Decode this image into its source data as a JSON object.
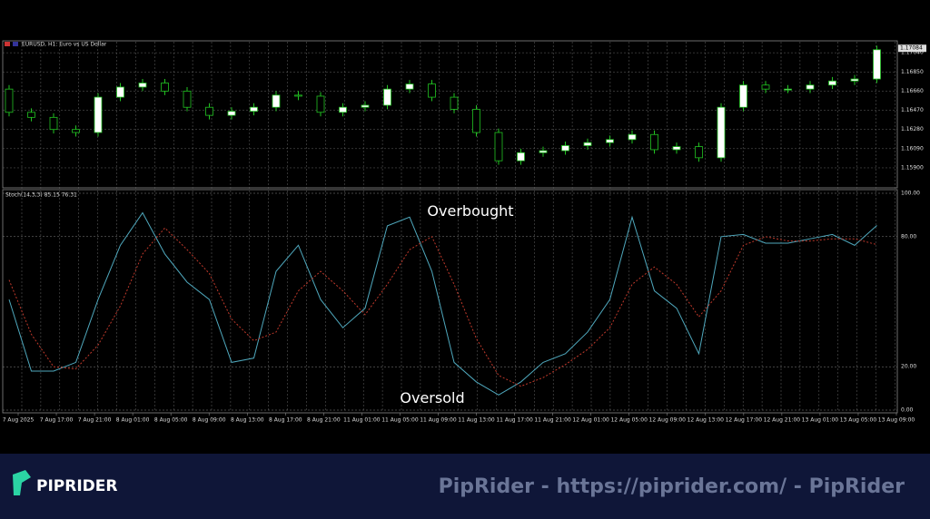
{
  "chart_data": [
    {
      "type": "candlestick",
      "title": "EURUSD, H1: Euro vs US Dollar",
      "open": [
        1.1668,
        1.1645,
        1.164,
        1.1628,
        1.1625,
        1.166,
        1.167,
        1.1674,
        1.1666,
        1.165,
        1.1642,
        1.1646,
        1.165,
        1.1662,
        1.1661,
        1.1645,
        1.165,
        1.1652,
        1.1668,
        1.1673,
        1.166,
        1.1648,
        1.1625,
        1.1597,
        1.1605,
        1.1607,
        1.1612,
        1.1615,
        1.1618,
        1.1623,
        1.1608,
        1.1611,
        1.16,
        1.165,
        1.1672,
        1.1668,
        1.1668,
        1.1672,
        1.1676,
        1.1678
      ],
      "high": [
        1.1672,
        1.1649,
        1.1644,
        1.1632,
        1.1664,
        1.1674,
        1.1678,
        1.1678,
        1.167,
        1.1654,
        1.165,
        1.1654,
        1.1666,
        1.1666,
        1.1665,
        1.1654,
        1.1656,
        1.1672,
        1.1677,
        1.1677,
        1.1664,
        1.1652,
        1.1629,
        1.1609,
        1.1611,
        1.1616,
        1.1619,
        1.1622,
        1.1627,
        1.1627,
        1.1615,
        1.1615,
        1.1654,
        1.1676,
        1.1676,
        1.1672,
        1.1676,
        1.168,
        1.1682,
        1.1711
      ],
      "low": [
        1.1641,
        1.1636,
        1.1624,
        1.1621,
        1.1621,
        1.1656,
        1.1666,
        1.1662,
        1.1646,
        1.1638,
        1.1638,
        1.1642,
        1.1646,
        1.1657,
        1.1641,
        1.1641,
        1.1646,
        1.1648,
        1.1664,
        1.1656,
        1.1644,
        1.1621,
        1.1593,
        1.1593,
        1.1601,
        1.1603,
        1.1608,
        1.1611,
        1.1614,
        1.1604,
        1.1604,
        1.1596,
        1.1596,
        1.1646,
        1.1664,
        1.1664,
        1.1664,
        1.1668,
        1.1672,
        1.1674
      ],
      "close": [
        1.1645,
        1.164,
        1.1628,
        1.1625,
        1.166,
        1.167,
        1.1674,
        1.1666,
        1.165,
        1.1642,
        1.1646,
        1.165,
        1.1662,
        1.1661,
        1.1645,
        1.165,
        1.1652,
        1.1668,
        1.1673,
        1.166,
        1.1648,
        1.1625,
        1.1597,
        1.1605,
        1.1607,
        1.1612,
        1.1615,
        1.1618,
        1.1623,
        1.1608,
        1.1611,
        1.16,
        1.165,
        1.1672,
        1.1668,
        1.1668,
        1.1672,
        1.1676,
        1.1678,
        1.1707
      ],
      "up_color": "#ffffff",
      "down_color": "#000000",
      "wick_color": "#22c322",
      "ylim": [
        1.1572,
        1.1714
      ],
      "yticks": [
        {
          "value": 1.1704,
          "label": "1.17040"
        },
        {
          "value": 1.1685,
          "label": "1.16850"
        },
        {
          "value": 1.1666,
          "label": "1.16660"
        },
        {
          "value": 1.1647,
          "label": "1.16470"
        },
        {
          "value": 1.1628,
          "label": "1.16280"
        },
        {
          "value": 1.1609,
          "label": "1.16090"
        },
        {
          "value": 1.159,
          "label": "1.15900"
        }
      ],
      "last_price": 1.17084,
      "grid": true
    },
    {
      "type": "line",
      "title": "Stoch(14,3,3) 85.15 76.31",
      "series": [
        {
          "name": "%K",
          "color": "#4fa8bd",
          "values": [
            51,
            18,
            18,
            22,
            51,
            76,
            91,
            72,
            59,
            51,
            22,
            24,
            64,
            76,
            51,
            38,
            47,
            85,
            89,
            64,
            22,
            13,
            7,
            13,
            22,
            26,
            36,
            51,
            89,
            55,
            47,
            26,
            80,
            81,
            77,
            77,
            79,
            81,
            76,
            85.15
          ]
        },
        {
          "name": "%D",
          "color": "#c0392b",
          "values": [
            60,
            35,
            20,
            19,
            30,
            48,
            72,
            84,
            74,
            63,
            42,
            32,
            36,
            55,
            64,
            55,
            44,
            58,
            74,
            80,
            58,
            33,
            16,
            11,
            15,
            21,
            28,
            38,
            58,
            66,
            58,
            43,
            55,
            76,
            80,
            78,
            78,
            79,
            79,
            76.31
          ]
        }
      ],
      "ylim": [
        0,
        100
      ],
      "yticks": [
        {
          "value": 100,
          "label": "100.00"
        },
        {
          "value": 80,
          "label": "80.00"
        },
        {
          "value": 20,
          "label": "20.00"
        },
        {
          "value": 0,
          "label": "0.00"
        }
      ],
      "annotations": [
        {
          "text": "Overbought",
          "y": 91
        },
        {
          "text": "Oversold",
          "y": 7
        }
      ],
      "x_labels": [
        "7 Aug 2025",
        "7 Aug 17:00",
        "7 Aug 21:00",
        "8 Aug 01:00",
        "8 Aug 05:00",
        "8 Aug 09:00",
        "8 Aug 13:00",
        "8 Aug 17:00",
        "8 Aug 21:00",
        "11 Aug 01:00",
        "11 Aug 05:00",
        "11 Aug 09:00",
        "11 Aug 13:00",
        "11 Aug 17:00",
        "11 Aug 21:00",
        "12 Aug 01:00",
        "12 Aug 05:00",
        "12 Aug 09:00",
        "12 Aug 13:00",
        "12 Aug 17:00",
        "12 Aug 21:00",
        "13 Aug 01:00",
        "13 Aug 05:00",
        "13 Aug 09:00"
      ],
      "grid": true
    }
  ],
  "footer": {
    "brand": "PIPRIDER",
    "watermark": "PipRider - https://piprider.com/ - PipRider"
  }
}
